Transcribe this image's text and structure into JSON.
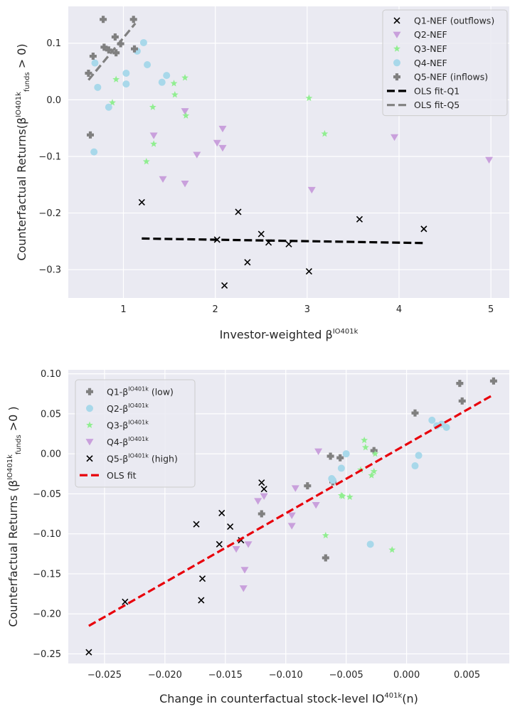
{
  "chart_data": [
    {
      "type": "scatter",
      "xlabel": "Investor-weighted β^{IO401k}",
      "ylabel": "Counterfactual Returns(β^{IO401k}_{funds} > 0)",
      "xlim": [
        0.4,
        5.2
      ],
      "ylim": [
        -0.35,
        0.165
      ],
      "xticks": [
        1,
        2,
        3,
        4,
        5
      ],
      "yticks": [
        -0.3,
        -0.2,
        -0.1,
        0.0,
        0.1
      ],
      "xtick_labels": [
        "1",
        "2",
        "3",
        "4",
        "5"
      ],
      "ytick_labels": [
        "−0.3",
        "−0.2",
        "−0.1",
        "0.0",
        "0.1"
      ],
      "grid": true,
      "legend_position": "top-right",
      "series": [
        {
          "name": "Q1-NEF (outflows)",
          "marker": "x",
          "color": "#000000",
          "x": [
            1.2,
            2.02,
            2.25,
            2.35,
            2.5,
            2.58,
            2.8,
            3.02,
            3.57,
            4.27,
            2.1
          ],
          "y": [
            -0.181,
            -0.247,
            -0.198,
            -0.287,
            -0.237,
            -0.252,
            -0.255,
            -0.303,
            -0.211,
            -0.228,
            -0.328
          ]
        },
        {
          "name": "Q2-NEF",
          "marker": "triangle-down",
          "color": "#c9a0dc",
          "x": [
            1.33,
            1.43,
            1.67,
            1.67,
            1.8,
            2.02,
            2.08,
            2.08,
            3.05,
            3.95,
            4.98
          ],
          "y": [
            -0.063,
            -0.14,
            -0.148,
            -0.02,
            -0.097,
            -0.076,
            -0.085,
            -0.051,
            -0.159,
            -0.066,
            -0.106
          ]
        },
        {
          "name": "Q3-NEF",
          "marker": "star",
          "color": "#90ee90",
          "x": [
            0.88,
            0.92,
            1.25,
            1.32,
            1.33,
            1.55,
            1.56,
            1.67,
            1.68,
            3.02,
            3.19
          ],
          "y": [
            -0.005,
            0.036,
            -0.109,
            -0.013,
            -0.078,
            0.029,
            0.009,
            0.039,
            -0.028,
            0.003,
            -0.06
          ]
        },
        {
          "name": "Q4-NEF",
          "marker": "circle",
          "color": "#a8d8ea",
          "x": [
            0.68,
            0.69,
            0.72,
            0.84,
            1.03,
            1.03,
            1.15,
            1.22,
            1.26,
            1.42,
            1.47
          ],
          "y": [
            -0.092,
            0.065,
            0.022,
            -0.013,
            0.047,
            0.028,
            0.086,
            0.101,
            0.062,
            0.031,
            0.043
          ]
        },
        {
          "name": "Q5-NEF (inflows)",
          "marker": "plus",
          "color": "#808080",
          "x": [
            0.62,
            0.64,
            0.67,
            0.78,
            0.79,
            0.84,
            0.91,
            0.92,
            0.97,
            1.11,
            1.12
          ],
          "y": [
            0.047,
            -0.062,
            0.077,
            0.142,
            0.093,
            0.088,
            0.111,
            0.083,
            0.099,
            0.142,
            0.09
          ]
        }
      ],
      "fits": [
        {
          "name": "OLS fit-Q1",
          "color": "#000000",
          "x": [
            1.2,
            4.27
          ],
          "y": [
            -0.245,
            -0.253
          ]
        },
        {
          "name": "OLS fit-Q5",
          "color": "#808080",
          "x": [
            0.62,
            1.13
          ],
          "y": [
            0.035,
            0.135
          ]
        }
      ]
    },
    {
      "type": "scatter",
      "xlabel": "Change in counterfactual stock-level IO^{401k}(n)",
      "ylabel": "Counterfactual Returns (β^{IO401k}_{funds} >0 )",
      "xlim": [
        -0.028,
        0.0085
      ],
      "ylim": [
        -0.262,
        0.105
      ],
      "xticks": [
        -0.025,
        -0.02,
        -0.015,
        -0.01,
        -0.005,
        0.0,
        0.005
      ],
      "yticks": [
        -0.25,
        -0.2,
        -0.15,
        -0.1,
        -0.05,
        0.0,
        0.05,
        0.1
      ],
      "xtick_labels": [
        "−0.025",
        "−0.020",
        "−0.015",
        "−0.010",
        "−0.005",
        "0.000",
        "0.005"
      ],
      "ytick_labels": [
        "−0.25",
        "−0.20",
        "−0.15",
        "−0.10",
        "−0.05",
        "0.00",
        "0.05",
        "0.10"
      ],
      "grid": true,
      "legend_position": "top-left",
      "series": [
        {
          "name": "Q1-β^{IO401k} (low)",
          "marker": "plus",
          "color": "#808080",
          "x": [
            -0.012,
            -0.0067,
            -0.0082,
            -0.0063,
            -0.0055,
            -0.0027,
            0.0007,
            0.0044,
            0.0046,
            0.0072,
            -0.0061
          ],
          "y": [
            -0.075,
            -0.13,
            -0.04,
            -0.003,
            -0.005,
            0.004,
            0.051,
            0.088,
            0.066,
            0.091,
            -0.035
          ]
        },
        {
          "name": "Q2-β^{IO401k}",
          "marker": "circle",
          "color": "#a8d8ea",
          "x": [
            -0.0061,
            -0.0054,
            -0.005,
            -0.003,
            0.0007,
            0.001,
            0.0021,
            0.0025,
            0.0029,
            0.0033,
            -0.0062
          ],
          "y": [
            -0.033,
            -0.018,
            0.0,
            -0.113,
            -0.015,
            -0.002,
            0.042,
            0.035,
            0.037,
            0.033,
            -0.031
          ]
        },
        {
          "name": "Q3-β^{IO401k}",
          "marker": "star",
          "color": "#90ee90",
          "x": [
            -0.0067,
            -0.0054,
            -0.0047,
            -0.0038,
            -0.0035,
            -0.0034,
            -0.0029,
            -0.0027,
            -0.0026,
            -0.0012,
            -0.0053
          ],
          "y": [
            -0.102,
            -0.052,
            -0.054,
            -0.02,
            0.017,
            0.008,
            -0.027,
            -0.022,
            0.0,
            -0.12,
            -0.053
          ]
        },
        {
          "name": "Q4-β^{IO401k}",
          "marker": "triangle-down",
          "color": "#c9a0dc",
          "x": [
            -0.0141,
            -0.0134,
            -0.0135,
            -0.0131,
            -0.0123,
            -0.0118,
            -0.0095,
            -0.0095,
            -0.0092,
            -0.0075,
            -0.0073
          ],
          "y": [
            -0.119,
            -0.145,
            -0.168,
            -0.113,
            -0.059,
            -0.053,
            -0.077,
            -0.09,
            -0.043,
            -0.064,
            0.003
          ]
        },
        {
          "name": "Q5-β^{IO401k} (high)",
          "marker": "x",
          "color": "#000000",
          "x": [
            -0.0263,
            -0.0233,
            -0.0174,
            -0.0169,
            -0.017,
            -0.0155,
            -0.0153,
            -0.0146,
            -0.0137,
            -0.012,
            -0.0118
          ],
          "y": [
            -0.248,
            -0.185,
            -0.088,
            -0.156,
            -0.183,
            -0.113,
            -0.074,
            -0.091,
            -0.108,
            -0.036,
            -0.044
          ]
        }
      ],
      "fits": [
        {
          "name": "OLS fit",
          "color": "#e8000b",
          "x": [
            -0.0263,
            0.0072
          ],
          "y": [
            -0.215,
            0.074
          ]
        }
      ]
    }
  ]
}
